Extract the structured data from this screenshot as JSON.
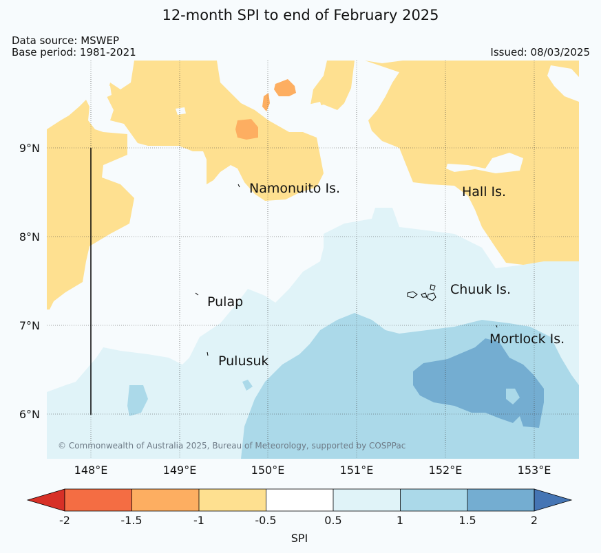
{
  "title": "12-month SPI to end of February 2025",
  "data_source": "Data source: MSWEP",
  "base_period": "Base period: 1981-2021",
  "issued": "Issued: 08/03/2025",
  "latitude_labels": [
    "9°N",
    "8°N",
    "7°N",
    "6°N"
  ],
  "longitude_labels": [
    "148°E",
    "149°E",
    "150°E",
    "151°E",
    "152°E",
    "153°E"
  ],
  "islands": {
    "namonuito": "Namonuito Is.",
    "hall": "Hall Is.",
    "chuuk": "Chuuk Is.",
    "pulap": "Pulap",
    "mortlock": "Mortlock Is.",
    "pulusuk": "Pulusuk"
  },
  "copyright": "© Commonwealth of Australia 2025, Bureau of Meteorology, supported by COSPPac",
  "colorbar": {
    "ticks": [
      "-2",
      "-1.5",
      "-1",
      "-0.5",
      "0.5",
      "1",
      "1.5",
      "2"
    ],
    "label": "SPI",
    "colors": [
      "#d73027",
      "#f46d43",
      "#fdae61",
      "#fee090",
      "#ffffff",
      "#e0f3f8",
      "#abd9e9",
      "#74add1",
      "#4575b4"
    ]
  }
}
